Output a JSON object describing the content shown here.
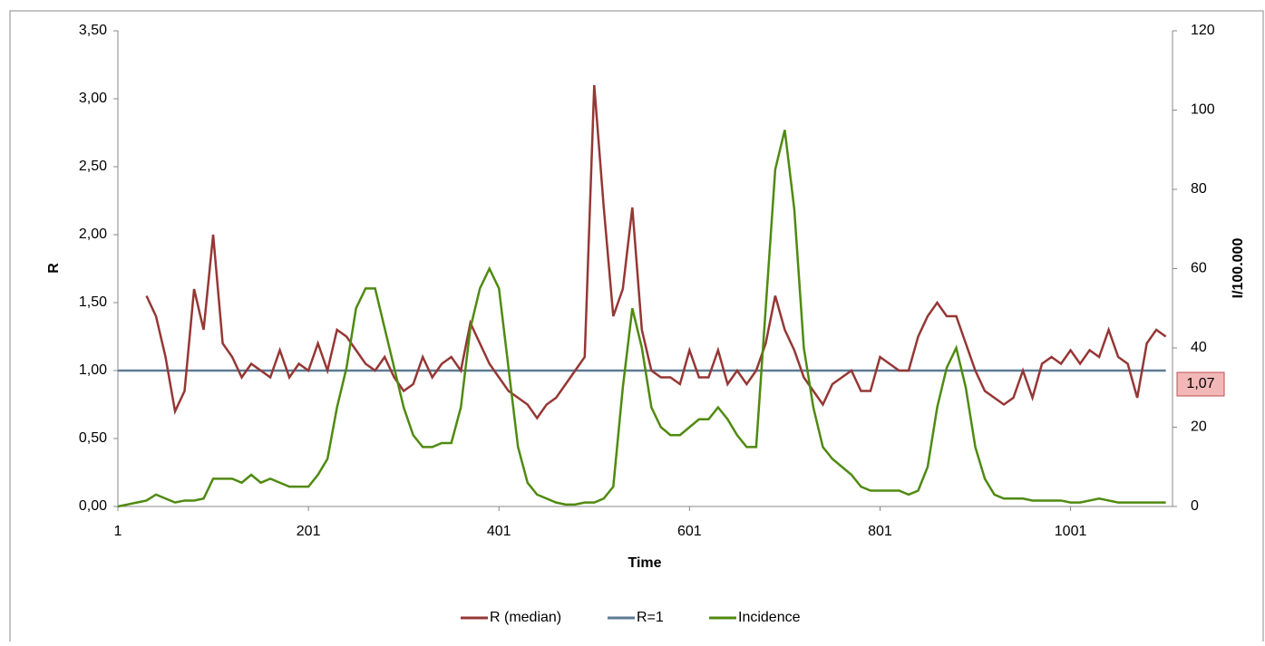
{
  "chart_data": {
    "type": "line",
    "x_label": "Time",
    "y_label": "R",
    "y2_label": "I/100.000",
    "annotation": "1,07",
    "xlim": [
      1,
      1108
    ],
    "xticks": [
      1,
      201,
      401,
      601,
      801,
      1001
    ],
    "ylim": [
      0,
      3.5
    ],
    "yticks": [
      {
        "value": 0,
        "label": "0,00"
      },
      {
        "value": 0.5,
        "label": "0,50"
      },
      {
        "value": 1,
        "label": "1,00"
      },
      {
        "value": 1.5,
        "label": "1,50"
      },
      {
        "value": 2,
        "label": "2,00"
      },
      {
        "value": 2.5,
        "label": "2,50"
      },
      {
        "value": 3,
        "label": "3,00"
      },
      {
        "value": 3.5,
        "label": "3,50"
      }
    ],
    "y2lim": [
      0,
      120
    ],
    "y2ticks": [
      0,
      20,
      40,
      60,
      80,
      100,
      120
    ],
    "legend": "bottom",
    "x": [
      1,
      11,
      21,
      31,
      41,
      51,
      61,
      71,
      81,
      91,
      101,
      111,
      121,
      131,
      141,
      151,
      161,
      171,
      181,
      191,
      201,
      211,
      221,
      231,
      241,
      251,
      261,
      271,
      281,
      291,
      301,
      311,
      321,
      331,
      341,
      351,
      361,
      371,
      381,
      391,
      401,
      411,
      421,
      431,
      441,
      451,
      461,
      471,
      481,
      491,
      501,
      511,
      521,
      531,
      541,
      551,
      561,
      571,
      581,
      591,
      601,
      611,
      621,
      631,
      641,
      651,
      661,
      671,
      681,
      691,
      701,
      711,
      721,
      731,
      741,
      751,
      761,
      771,
      781,
      791,
      801,
      811,
      821,
      831,
      841,
      851,
      861,
      871,
      881,
      891,
      901,
      911,
      921,
      931,
      941,
      951,
      961,
      971,
      981,
      991,
      1001,
      1011,
      1021,
      1031,
      1041,
      1051,
      1061,
      1071,
      1081,
      1091,
      1101
    ],
    "series": [
      {
        "name": "R (median)",
        "color": "#953735",
        "values": [
          null,
          null,
          null,
          1.55,
          1.4,
          1.1,
          0.7,
          0.85,
          1.6,
          1.3,
          2.0,
          1.2,
          1.1,
          0.95,
          1.05,
          1.0,
          0.95,
          1.15,
          0.95,
          1.05,
          1.0,
          1.2,
          1.0,
          1.3,
          1.25,
          1.15,
          1.05,
          1.0,
          1.1,
          0.95,
          0.85,
          0.9,
          1.1,
          0.95,
          1.05,
          1.1,
          1.0,
          1.35,
          1.2,
          1.05,
          0.95,
          0.85,
          0.8,
          0.75,
          0.65,
          0.75,
          0.8,
          0.9,
          1.0,
          1.1,
          3.1,
          2.2,
          1.4,
          1.6,
          2.2,
          1.3,
          1.0,
          0.95,
          0.95,
          0.9,
          1.15,
          0.95,
          0.95,
          1.15,
          0.9,
          1.0,
          0.9,
          1.0,
          1.2,
          1.55,
          1.3,
          1.15,
          0.95,
          0.85,
          0.75,
          0.9,
          0.95,
          1.0,
          0.85,
          0.85,
          1.1,
          1.05,
          1.0,
          1.0,
          1.25,
          1.4,
          1.5,
          1.4,
          1.4,
          1.2,
          1.0,
          0.85,
          0.8,
          0.75,
          0.8,
          1.0,
          0.8,
          1.05,
          1.1,
          1.05,
          1.15,
          1.05,
          1.15,
          1.1,
          1.3,
          1.1,
          1.05,
          0.8,
          1.2,
          1.3,
          1.25
        ]
      },
      {
        "name": "R=1",
        "color": "#5d7a93",
        "values": [
          1,
          1,
          1,
          1,
          1,
          1,
          1,
          1,
          1,
          1,
          1,
          1,
          1,
          1,
          1,
          1,
          1,
          1,
          1,
          1,
          1,
          1,
          1,
          1,
          1,
          1,
          1,
          1,
          1,
          1,
          1,
          1,
          1,
          1,
          1,
          1,
          1,
          1,
          1,
          1,
          1,
          1,
          1,
          1,
          1,
          1,
          1,
          1,
          1,
          1,
          1,
          1,
          1,
          1,
          1,
          1,
          1,
          1,
          1,
          1,
          1,
          1,
          1,
          1,
          1,
          1,
          1,
          1,
          1,
          1,
          1,
          1,
          1,
          1,
          1,
          1,
          1,
          1,
          1,
          1,
          1,
          1,
          1,
          1,
          1,
          1,
          1,
          1,
          1,
          1,
          1,
          1,
          1,
          1,
          1,
          1,
          1,
          1,
          1,
          1,
          1,
          1,
          1,
          1,
          1,
          1,
          1,
          1,
          1,
          1,
          1
        ]
      },
      {
        "name": "Incidence",
        "color": "#4f8a10",
        "axis": "y2",
        "values": [
          0,
          0.5,
          1,
          1.5,
          3,
          2,
          1,
          1.5,
          1.5,
          2,
          7,
          7,
          7,
          6,
          8,
          6,
          7,
          6,
          5,
          5,
          5,
          8,
          12,
          25,
          35,
          50,
          55,
          55,
          45,
          35,
          25,
          18,
          15,
          15,
          16,
          16,
          25,
          45,
          55,
          60,
          55,
          35,
          15,
          6,
          3,
          2,
          1,
          0.5,
          0.5,
          1,
          1,
          2,
          5,
          30,
          50,
          40,
          25,
          20,
          18,
          18,
          20,
          22,
          22,
          25,
          22,
          18,
          15,
          15,
          50,
          85,
          95,
          75,
          40,
          25,
          15,
          12,
          10,
          8,
          5,
          4,
          4,
          4,
          4,
          3,
          4,
          10,
          25,
          35,
          40,
          30,
          15,
          7,
          3,
          2,
          2,
          2,
          1.5,
          1.5,
          1.5,
          1.5,
          1,
          1,
          1.5,
          2,
          1.5,
          1,
          1,
          1,
          1,
          1,
          1
        ]
      }
    ]
  }
}
